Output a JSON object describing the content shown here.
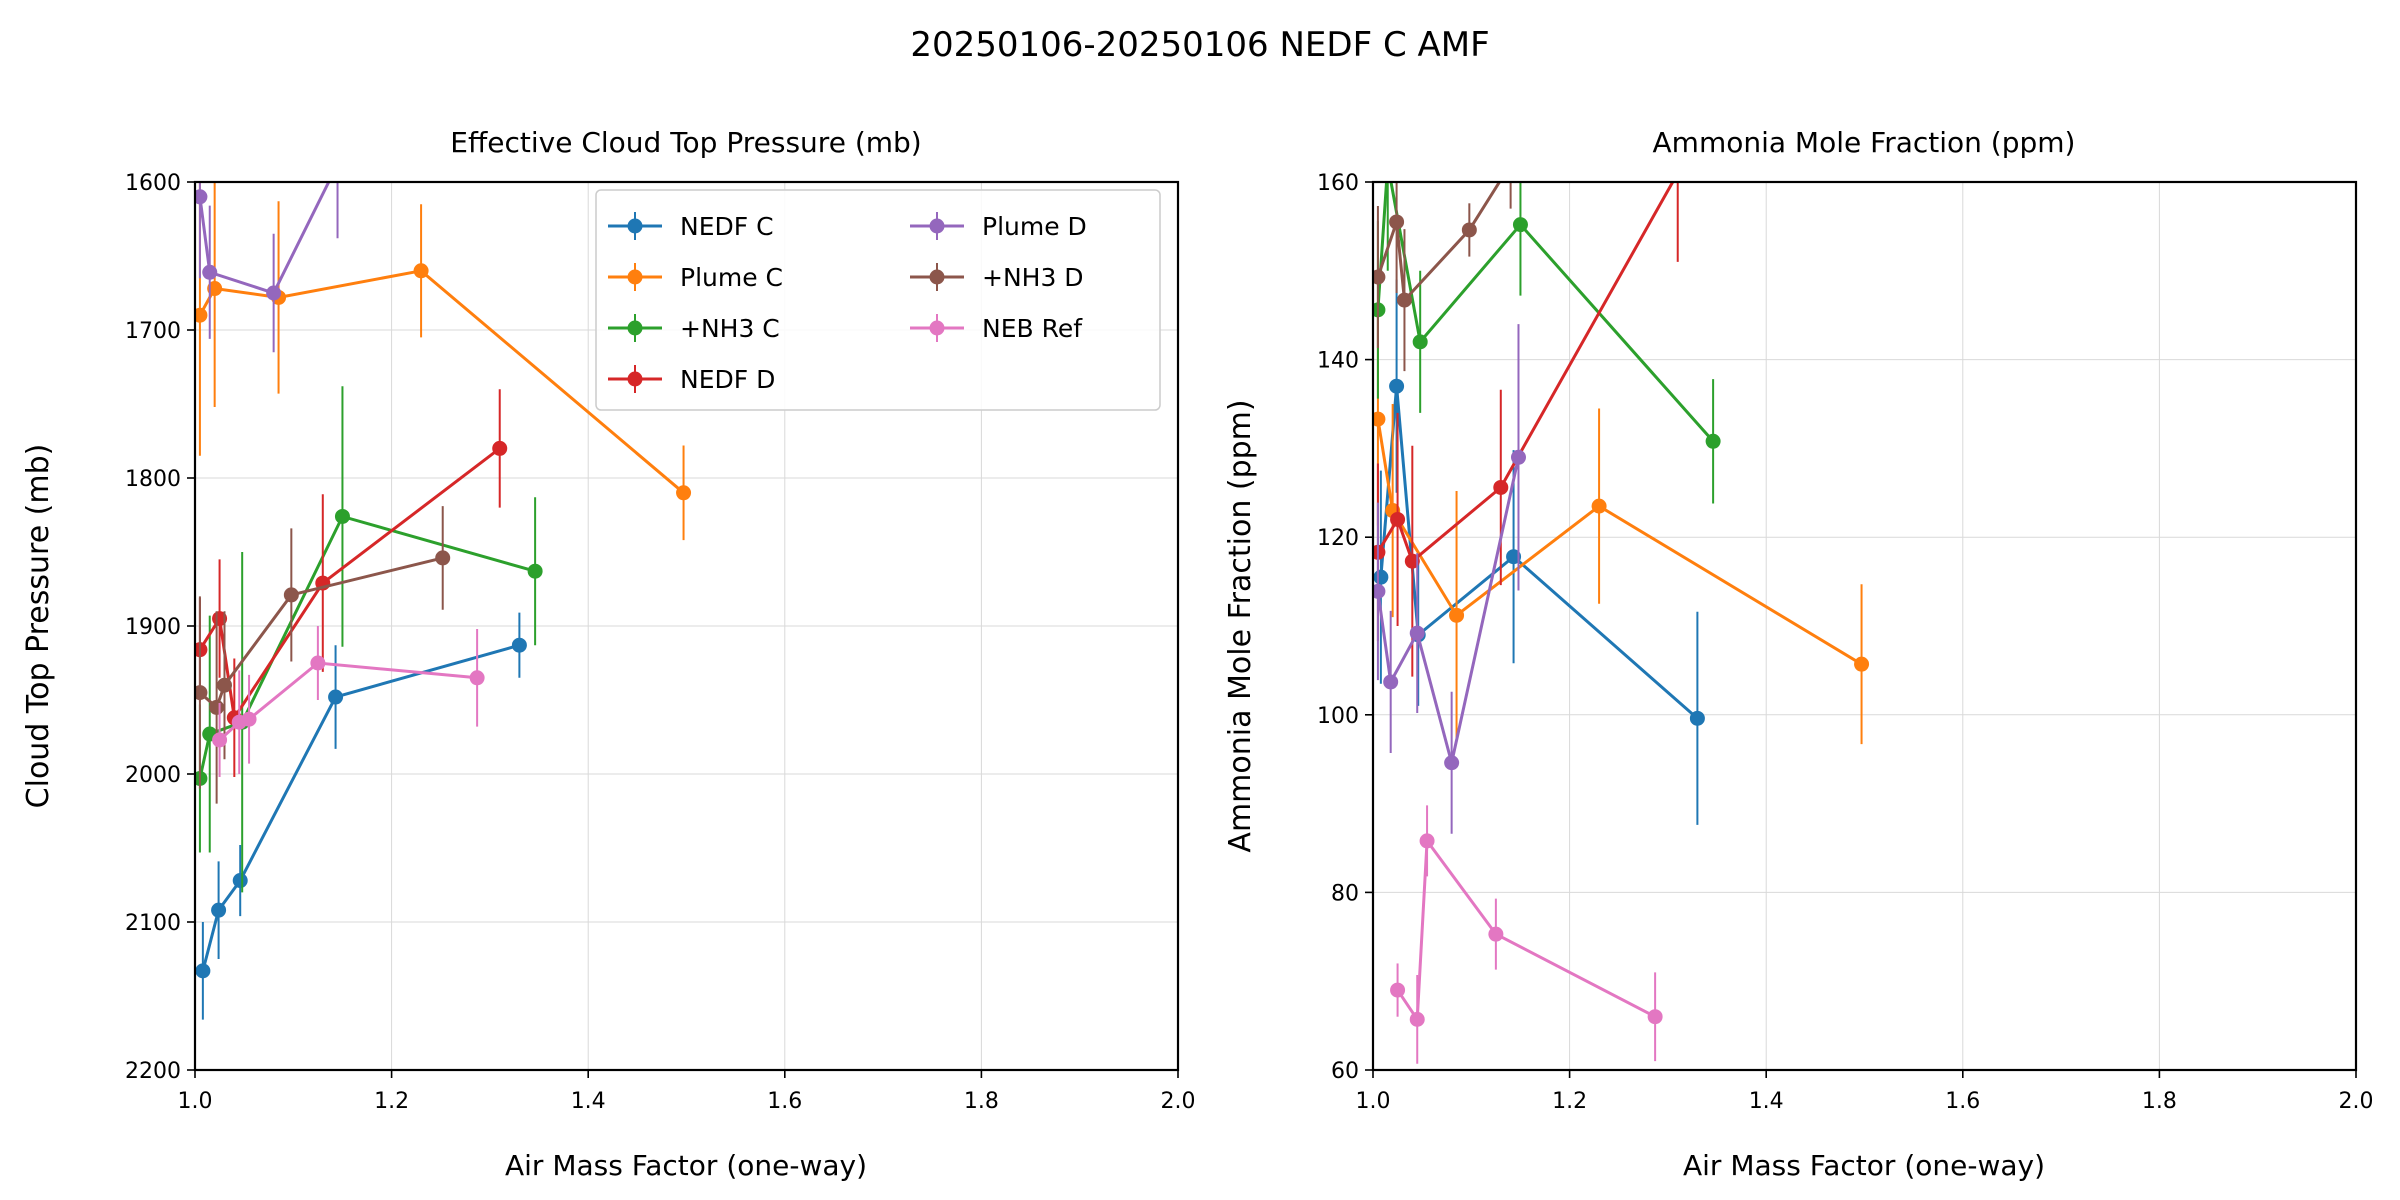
{
  "figure": {
    "suptitle": "20250106-20250106 NEDF C AMF"
  },
  "chart_data": [
    {
      "type": "line",
      "title": "Effective Cloud Top Pressure (mb)",
      "xlabel": "Air Mass Factor (one-way)",
      "ylabel": "Cloud Top Pressure (mb)",
      "xlim": [
        1.0,
        2.0
      ],
      "ylim": [
        2200,
        1600
      ],
      "y_inverted": true,
      "grid": true,
      "legend": {
        "placement": "top-right",
        "columns": 2
      },
      "xticks": [
        "1.0",
        "1.2",
        "1.4",
        "1.6",
        "1.8",
        "2.0"
      ],
      "yticks": [
        "1600",
        "1700",
        "1800",
        "1900",
        "2000",
        "2100",
        "2200"
      ],
      "series": [
        {
          "name": "NEDF C",
          "color": "#1f77b4",
          "points": [
            [
              1.008,
              2133,
              33
            ],
            [
              1.024,
              2092,
              33
            ],
            [
              1.046,
              2072,
              24
            ],
            [
              1.143,
              1948,
              35
            ],
            [
              1.33,
              1913,
              22
            ]
          ]
        },
        {
          "name": "Plume C",
          "color": "#ff7f0e",
          "points": [
            [
              1.005,
              1690,
              95
            ],
            [
              1.02,
              1672,
              80
            ],
            [
              1.085,
              1678,
              65
            ],
            [
              1.23,
              1660,
              45
            ],
            [
              1.497,
              1810,
              32
            ]
          ]
        },
        {
          "name": "+NH3 C",
          "color": "#2ca02c",
          "points": [
            [
              1.005,
              2003,
              50
            ],
            [
              1.015,
              1973,
              80
            ],
            [
              1.048,
              1965,
              115
            ],
            [
              1.15,
              1826,
              88
            ],
            [
              1.346,
              1863,
              50
            ]
          ]
        },
        {
          "name": "NEDF D",
          "color": "#d62728",
          "points": [
            [
              1.005,
              1916,
              35
            ],
            [
              1.025,
              1895,
              40
            ],
            [
              1.04,
              1962,
              40
            ],
            [
              1.13,
              1871,
              60
            ],
            [
              1.31,
              1780,
              40
            ]
          ]
        },
        {
          "name": "Plume D",
          "color": "#9467bd",
          "points": [
            [
              1.005,
              1610,
              55
            ],
            [
              1.015,
              1661,
              45
            ],
            [
              1.08,
              1675,
              40
            ],
            [
              1.145,
              1588,
              50
            ]
          ]
        },
        {
          "name": "+NH3 D",
          "color": "#8c564b",
          "points": [
            [
              1.005,
              1945,
              65
            ],
            [
              1.022,
              1955,
              65
            ],
            [
              1.03,
              1940,
              50
            ],
            [
              1.098,
              1879,
              45
            ],
            [
              1.252,
              1854,
              35
            ]
          ]
        },
        {
          "name": "NEB Ref",
          "color": "#e377c2",
          "points": [
            [
              1.025,
              1977,
              25
            ],
            [
              1.045,
              1965,
              35
            ],
            [
              1.055,
              1963,
              30
            ],
            [
              1.125,
              1925,
              25
            ],
            [
              1.287,
              1935,
              33
            ]
          ]
        }
      ]
    },
    {
      "type": "line",
      "title": "Ammonia Mole Fraction (ppm)",
      "xlabel": "Air Mass Factor (one-way)",
      "ylabel": "Ammonia Mole Fraction (ppm)",
      "xlim": [
        1.0,
        2.0
      ],
      "ylim": [
        60,
        160
      ],
      "grid": true,
      "xticks": [
        "1.0",
        "1.2",
        "1.4",
        "1.6",
        "1.8",
        "2.0"
      ],
      "yticks": [
        "60",
        "80",
        "100",
        "120",
        "140",
        "160"
      ],
      "series": [
        {
          "name": "NEDF C",
          "color": "#1f77b4",
          "points": [
            [
              1.008,
              115.5,
              12
            ],
            [
              1.024,
              137.0,
              12
            ],
            [
              1.046,
              109.0,
              8
            ],
            [
              1.143,
              117.8,
              12
            ],
            [
              1.33,
              99.6,
              12
            ]
          ]
        },
        {
          "name": "Plume C",
          "color": "#ff7f0e",
          "points": [
            [
              1.005,
              133.3,
              12
            ],
            [
              1.02,
              123.0,
              12
            ],
            [
              1.085,
              111.2,
              14
            ],
            [
              1.23,
              123.5,
              11
            ],
            [
              1.497,
              105.7,
              9
            ]
          ]
        },
        {
          "name": "+NH3 C",
          "color": "#2ca02c",
          "points": [
            [
              1.005,
              145.6,
              10
            ],
            [
              1.015,
              162.0,
              12
            ],
            [
              1.048,
              142.0,
              8
            ],
            [
              1.15,
              155.2,
              8
            ],
            [
              1.346,
              130.8,
              7
            ]
          ]
        },
        {
          "name": "NEDF D",
          "color": "#d62728",
          "points": [
            [
              1.005,
              118.3,
              10
            ],
            [
              1.025,
              122.0,
              12
            ],
            [
              1.04,
              117.3,
              13
            ],
            [
              1.13,
              125.6,
              11
            ],
            [
              1.31,
              161.0,
              10
            ]
          ]
        },
        {
          "name": "Plume D",
          "color": "#9467bd",
          "points": [
            [
              1.005,
              113.9,
              10
            ],
            [
              1.018,
              103.7,
              8
            ],
            [
              1.045,
              109.2,
              9
            ],
            [
              1.08,
              94.6,
              8
            ],
            [
              1.148,
              129.0,
              15
            ]
          ]
        },
        {
          "name": "+NH3 D",
          "color": "#8c564b",
          "points": [
            [
              1.005,
              149.3,
              8
            ],
            [
              1.024,
              155.5,
              8
            ],
            [
              1.032,
              146.7,
              8
            ],
            [
              1.098,
              154.6,
              3
            ],
            [
              1.14,
              162.0,
              5
            ]
          ]
        },
        {
          "name": "NEB Ref",
          "color": "#e377c2",
          "points": [
            [
              1.025,
              69.0,
              3
            ],
            [
              1.045,
              65.7,
              5
            ],
            [
              1.055,
              85.8,
              4
            ],
            [
              1.125,
              75.3,
              4
            ],
            [
              1.287,
              66.0,
              5
            ]
          ]
        }
      ]
    }
  ]
}
